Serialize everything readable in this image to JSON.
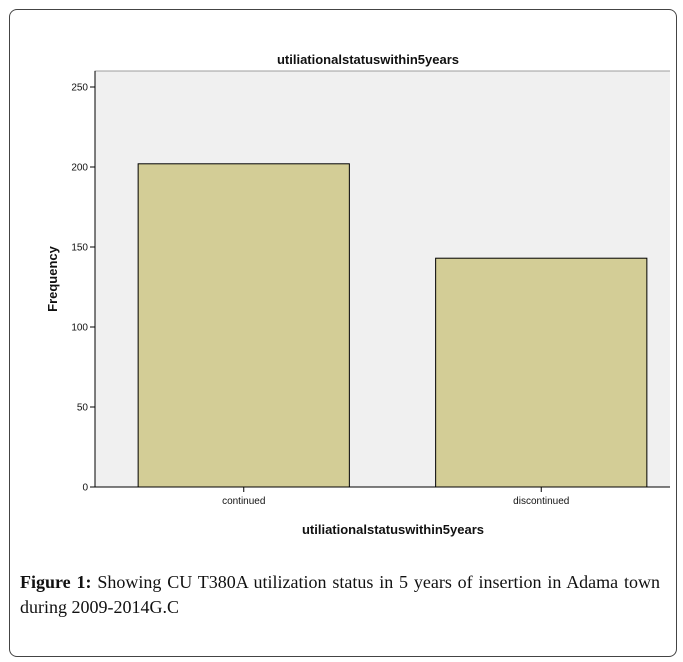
{
  "chart_data": {
    "type": "bar",
    "title": "utiliationalstatuswithin5years",
    "xlabel": "utiliationalstatuswithin5years",
    "ylabel": "Frequency",
    "categories": [
      "continued",
      "discontinued"
    ],
    "values": [
      202,
      143
    ],
    "ylim": [
      0,
      260
    ],
    "yticks": [
      0,
      50,
      100,
      150,
      200,
      250
    ],
    "grid": false,
    "colors": {
      "bar": "#d3cd96",
      "plot_bg": "#f0f0f0",
      "edge": "#000000"
    }
  },
  "caption": {
    "label": "Figure 1:",
    "text": "Showing CU T380A utilization status in 5 years of insertion in Adama town during 2009-2014G.C"
  }
}
